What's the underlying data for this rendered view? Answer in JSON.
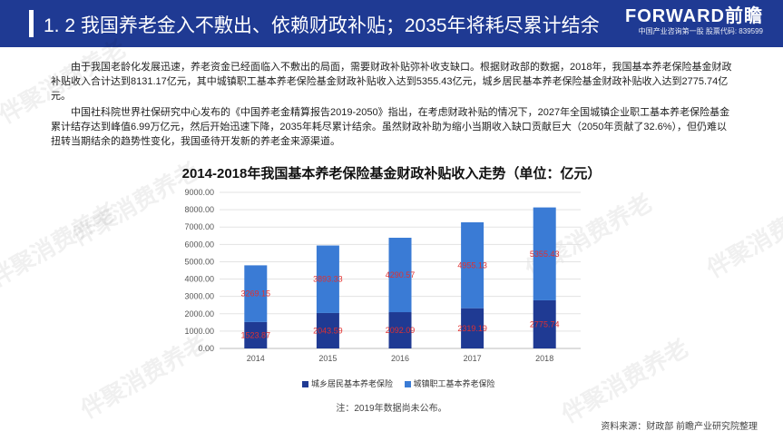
{
  "header": {
    "title": "1. 2  我国养老金入不敷出、依赖财政补贴；2035年将耗尽累计结余",
    "logo_brand": "FORWARD前瞻",
    "logo_sub": "中国产业咨询第一股  股票代码: 839599"
  },
  "paragraphs": {
    "p1": "由于我国老龄化发展迅速，养老资金已经面临入不敷出的局面，需要财政补贴弥补收支缺口。根据财政部的数据，2018年，我国基本养老保险基金财政补贴收入合计达到8131.17亿元，其中城镇职工基本养老保险基金财政补贴收入达到5355.43亿元，城乡居民基本养老保险基金财政补贴收入达到2775.74亿元。",
    "p2": "中国社科院世界社保研究中心发布的《中国养老金精算报告2019-2050》指出，在考虑财政补贴的情况下，2027年全国城镇企业职工基本养老保险基金累计结存达到峰值6.99万亿元，然后开始迅速下降，2035年耗尽累计结余。虽然财政补助为缩小当期收入缺口贡献巨大（2050年贡献了32.6%），但仍难以扭转当期结余的趋势性变化，我国亟待开发新的养老金来源渠道。"
  },
  "watermark": "伴聚消费养老",
  "chart_data": {
    "type": "bar",
    "stacked": true,
    "title": "2014-2018年我国基本养老保险基金财政补贴收入走势（单位：亿元）",
    "categories": [
      "2014",
      "2015",
      "2016",
      "2017",
      "2018"
    ],
    "series": [
      {
        "name": "城乡居民基本养老保险",
        "values": [
          1523.87,
          2043.59,
          2092.09,
          2319.19,
          2775.74
        ],
        "color": "#1f3a93"
      },
      {
        "name": "城镇职工基本养老保险",
        "values": [
          3269.15,
          3893.33,
          4290.57,
          4955.13,
          5355.43
        ],
        "color": "#3a7bd5"
      }
    ],
    "ylim": [
      0,
      9000
    ],
    "yticks": [
      "0.00",
      "1000.00",
      "2000.00",
      "3000.00",
      "4000.00",
      "5000.00",
      "6000.00",
      "7000.00",
      "8000.00",
      "9000.00"
    ],
    "label_color": "#e03030",
    "legend_position": "bottom",
    "grid": true
  },
  "footer": {
    "note": "注：2019年数据尚未公布。",
    "source": "资料来源：财政部 前瞻产业研究院整理"
  }
}
